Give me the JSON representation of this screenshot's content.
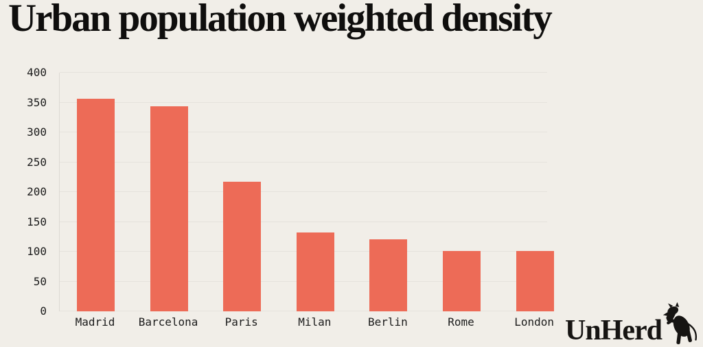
{
  "title": "Urban population weighted density",
  "brand": {
    "name": "UnHerd",
    "icon": "rearing-cow-icon"
  },
  "colors": {
    "background": "#f1eee8",
    "bar": "#ed6b57",
    "gridline": "#e5e2dc",
    "axis_line": "#ddd9d3",
    "title_text": "#0f0e0d",
    "tick_text": "#1a1a1a"
  },
  "chart_data": {
    "type": "bar",
    "title": "Urban population weighted density",
    "categories": [
      "Madrid",
      "Barcelona",
      "Paris",
      "Milan",
      "Berlin",
      "Rome",
      "London"
    ],
    "values": [
      356,
      344,
      217,
      132,
      121,
      101,
      101
    ],
    "xlabel": "",
    "ylabel": "",
    "ylim": [
      0,
      400
    ],
    "yticks": [
      0,
      50,
      100,
      150,
      200,
      250,
      300,
      350,
      400
    ],
    "grid": "horizontal",
    "legend": "none",
    "bar_color": "#ed6b57"
  }
}
